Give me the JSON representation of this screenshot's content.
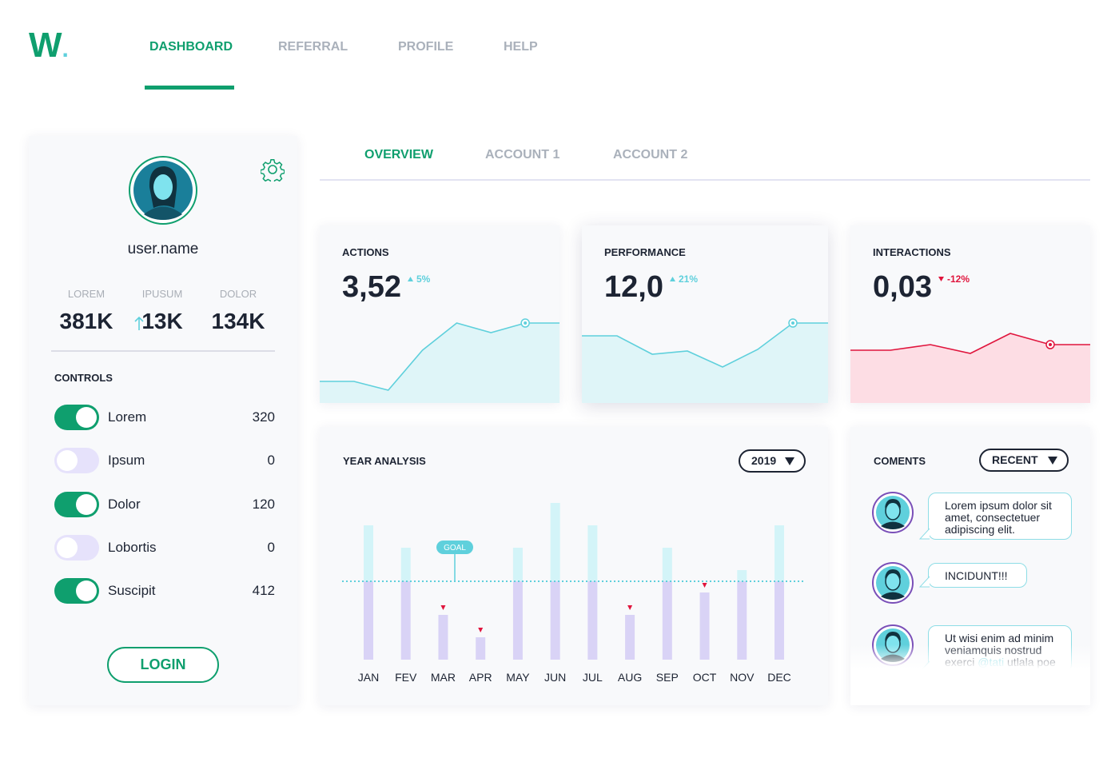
{
  "logo": {
    "letter": "W",
    "dot": "."
  },
  "nav": [
    {
      "label": "DASHBOARD",
      "active": true
    },
    {
      "label": "REFERRAL",
      "active": false
    },
    {
      "label": "PROFILE",
      "active": false
    },
    {
      "label": "HELP",
      "active": false
    }
  ],
  "profile": {
    "username": "user.name",
    "stats": [
      {
        "label": "LOREM",
        "value": "381K",
        "trend": "none"
      },
      {
        "label": "IPUSUM",
        "value": "13K",
        "trend": "up"
      },
      {
        "label": "DOLOR",
        "value": "134K",
        "trend": "none"
      }
    ],
    "controls_title": "CONTROLS",
    "controls": [
      {
        "label": "Lorem",
        "value": 320,
        "on": true
      },
      {
        "label": "Ipsum",
        "value": 0,
        "on": false
      },
      {
        "label": "Dolor",
        "value": 120,
        "on": true
      },
      {
        "label": "Lobortis",
        "value": 0,
        "on": false
      },
      {
        "label": "Suscipit",
        "value": 412,
        "on": true
      }
    ],
    "login": "LOGIN"
  },
  "tabs": [
    {
      "label": "OVERVIEW",
      "active": true
    },
    {
      "label": "ACCOUNT 1",
      "active": false
    },
    {
      "label": "ACCOUNT 2",
      "active": false
    }
  ],
  "cards": [
    {
      "title": "ACTIONS",
      "value": "3,52",
      "change": "5%",
      "trend": "up",
      "color": "#5fd0dc",
      "fill": "#dff5f8",
      "ylim": [
        0,
        120
      ],
      "values": [
        27,
        27,
        16,
        66,
        100,
        88,
        100,
        100
      ]
    },
    {
      "title": "PERFORMANCE",
      "value": "12,0",
      "change": "21%",
      "trend": "up",
      "color": "#5fd0dc",
      "fill": "#dff5f8",
      "ylim": [
        0,
        120
      ],
      "values": [
        84,
        84,
        61,
        65,
        45,
        67,
        100,
        100
      ]
    },
    {
      "title": "INTERACTIONS",
      "value": "0,03",
      "change": "-12%",
      "trend": "down",
      "color": "#e0153d",
      "fill": "#fddde4",
      "ylim": [
        0,
        120
      ],
      "values": [
        66,
        66,
        73,
        62,
        87,
        73,
        73
      ]
    }
  ],
  "chart_data": {
    "type": "bar",
    "title": "YEAR ANALYSIS",
    "selector": "2019",
    "goal_label": "GOAL",
    "goal": 3.5,
    "categories": [
      "JAN",
      "FEV",
      "MAR",
      "APR",
      "MAY",
      "JUN",
      "JUL",
      "AUG",
      "SEP",
      "OCT",
      "NOV",
      "DEC"
    ],
    "values": [
      6,
      5,
      2,
      1,
      5,
      7,
      6,
      2,
      5,
      3,
      4,
      6
    ],
    "ylim": [
      0,
      7
    ],
    "color": "#d9d3f6",
    "over_color": "#d3f4f8"
  },
  "comments": {
    "title": "COMENTS",
    "selector": "RECENT",
    "items": [
      {
        "parts": [
          "Lorem ipsum dolor sit amet, consectetuer adipiscing elit."
        ]
      },
      {
        "parts": [
          "INCIDUNT!!!"
        ]
      },
      {
        "parts": [
          "Ut wisi enim ad minim veniamquis nostrud exerci ",
          "@tati",
          " utlala poe"
        ]
      }
    ]
  }
}
